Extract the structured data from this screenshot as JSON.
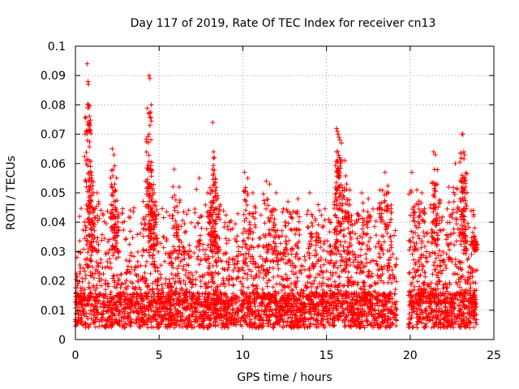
{
  "chart_data": {
    "type": "scatter",
    "title": "Day 117 of 2019, Rate Of TEC Index for receiver cn13",
    "xlabel": "GPS time / hours",
    "ylabel": "ROTI / TECUs",
    "xlim": [
      0,
      25
    ],
    "ylim": [
      0,
      0.1
    ],
    "x_ticks": [
      0,
      5,
      10,
      15,
      20,
      25
    ],
    "y_ticks": [
      0,
      0.01,
      0.02,
      0.03,
      0.04,
      0.05,
      0.06,
      0.07,
      0.08,
      0.09,
      0.1
    ],
    "x_tick_labels": [
      "0",
      "5",
      "10",
      "15",
      "20",
      "25"
    ],
    "y_tick_labels": [
      "0",
      "0.01",
      "0.02",
      "0.03",
      "0.04",
      "0.05",
      "0.06",
      "0.07",
      "0.08",
      "0.09",
      "0.1"
    ],
    "grid": true,
    "marker": "+",
    "series_color": "#ff0000",
    "data_gap_hours": [
      19.2,
      19.9
    ],
    "series": [
      {
        "name": "ROTI",
        "points": [
          [
            0.7,
            0.094
          ],
          [
            0.75,
            0.088
          ],
          [
            0.78,
            0.087
          ],
          [
            0.72,
            0.079
          ],
          [
            0.8,
            0.079
          ],
          [
            0.9,
            0.059
          ],
          [
            0.95,
            0.057
          ],
          [
            0.85,
            0.055
          ],
          [
            1.0,
            0.05
          ],
          [
            1.3,
            0.05
          ],
          [
            2.2,
            0.065
          ],
          [
            2.3,
            0.063
          ],
          [
            2.25,
            0.058
          ],
          [
            2.35,
            0.053
          ],
          [
            2.4,
            0.051
          ],
          [
            4.4,
            0.09
          ],
          [
            4.45,
            0.089
          ],
          [
            4.4,
            0.077
          ],
          [
            4.45,
            0.073
          ],
          [
            4.4,
            0.07
          ],
          [
            4.5,
            0.058
          ],
          [
            4.6,
            0.051
          ],
          [
            4.7,
            0.05
          ],
          [
            4.2,
            0.054
          ],
          [
            4.8,
            0.047
          ],
          [
            5.9,
            0.058
          ],
          [
            6.2,
            0.052
          ],
          [
            7.4,
            0.055
          ],
          [
            7.9,
            0.05
          ],
          [
            8.2,
            0.074
          ],
          [
            8.25,
            0.064
          ],
          [
            8.3,
            0.062
          ],
          [
            8.2,
            0.058
          ],
          [
            8.35,
            0.055
          ],
          [
            8.5,
            0.049
          ],
          [
            10.1,
            0.057
          ],
          [
            10.3,
            0.055
          ],
          [
            10.6,
            0.05
          ],
          [
            11.4,
            0.054
          ],
          [
            11.6,
            0.053
          ],
          [
            12.0,
            0.05
          ],
          [
            12.7,
            0.047
          ],
          [
            13.3,
            0.048
          ],
          [
            14.0,
            0.05
          ],
          [
            14.5,
            0.046
          ],
          [
            15.6,
            0.072
          ],
          [
            15.65,
            0.071
          ],
          [
            15.7,
            0.07
          ],
          [
            15.75,
            0.069
          ],
          [
            15.8,
            0.068
          ],
          [
            15.6,
            0.064
          ],
          [
            15.9,
            0.067
          ],
          [
            16.1,
            0.061
          ],
          [
            16.2,
            0.053
          ],
          [
            16.4,
            0.051
          ],
          [
            17.1,
            0.05
          ],
          [
            17.5,
            0.048
          ],
          [
            18.2,
            0.051
          ],
          [
            18.5,
            0.057
          ],
          [
            18.7,
            0.05
          ],
          [
            20.1,
            0.057
          ],
          [
            20.4,
            0.051
          ],
          [
            20.7,
            0.05
          ],
          [
            21.4,
            0.064
          ],
          [
            21.5,
            0.063
          ],
          [
            21.45,
            0.058
          ],
          [
            21.6,
            0.053
          ],
          [
            22.3,
            0.052
          ],
          [
            22.7,
            0.06
          ],
          [
            23.1,
            0.07
          ],
          [
            23.15,
            0.07
          ],
          [
            23.2,
            0.064
          ],
          [
            23.25,
            0.063
          ],
          [
            23.1,
            0.056
          ],
          [
            23.3,
            0.052
          ],
          [
            23.8,
            0.035
          ],
          [
            23.9,
            0.033
          ]
        ],
        "bulk": {
          "x_range": [
            0,
            24
          ],
          "typical_value": 0.012,
          "typical_spread": [
            0.004,
            0.03
          ],
          "minimum": 0.002
        }
      }
    ]
  }
}
